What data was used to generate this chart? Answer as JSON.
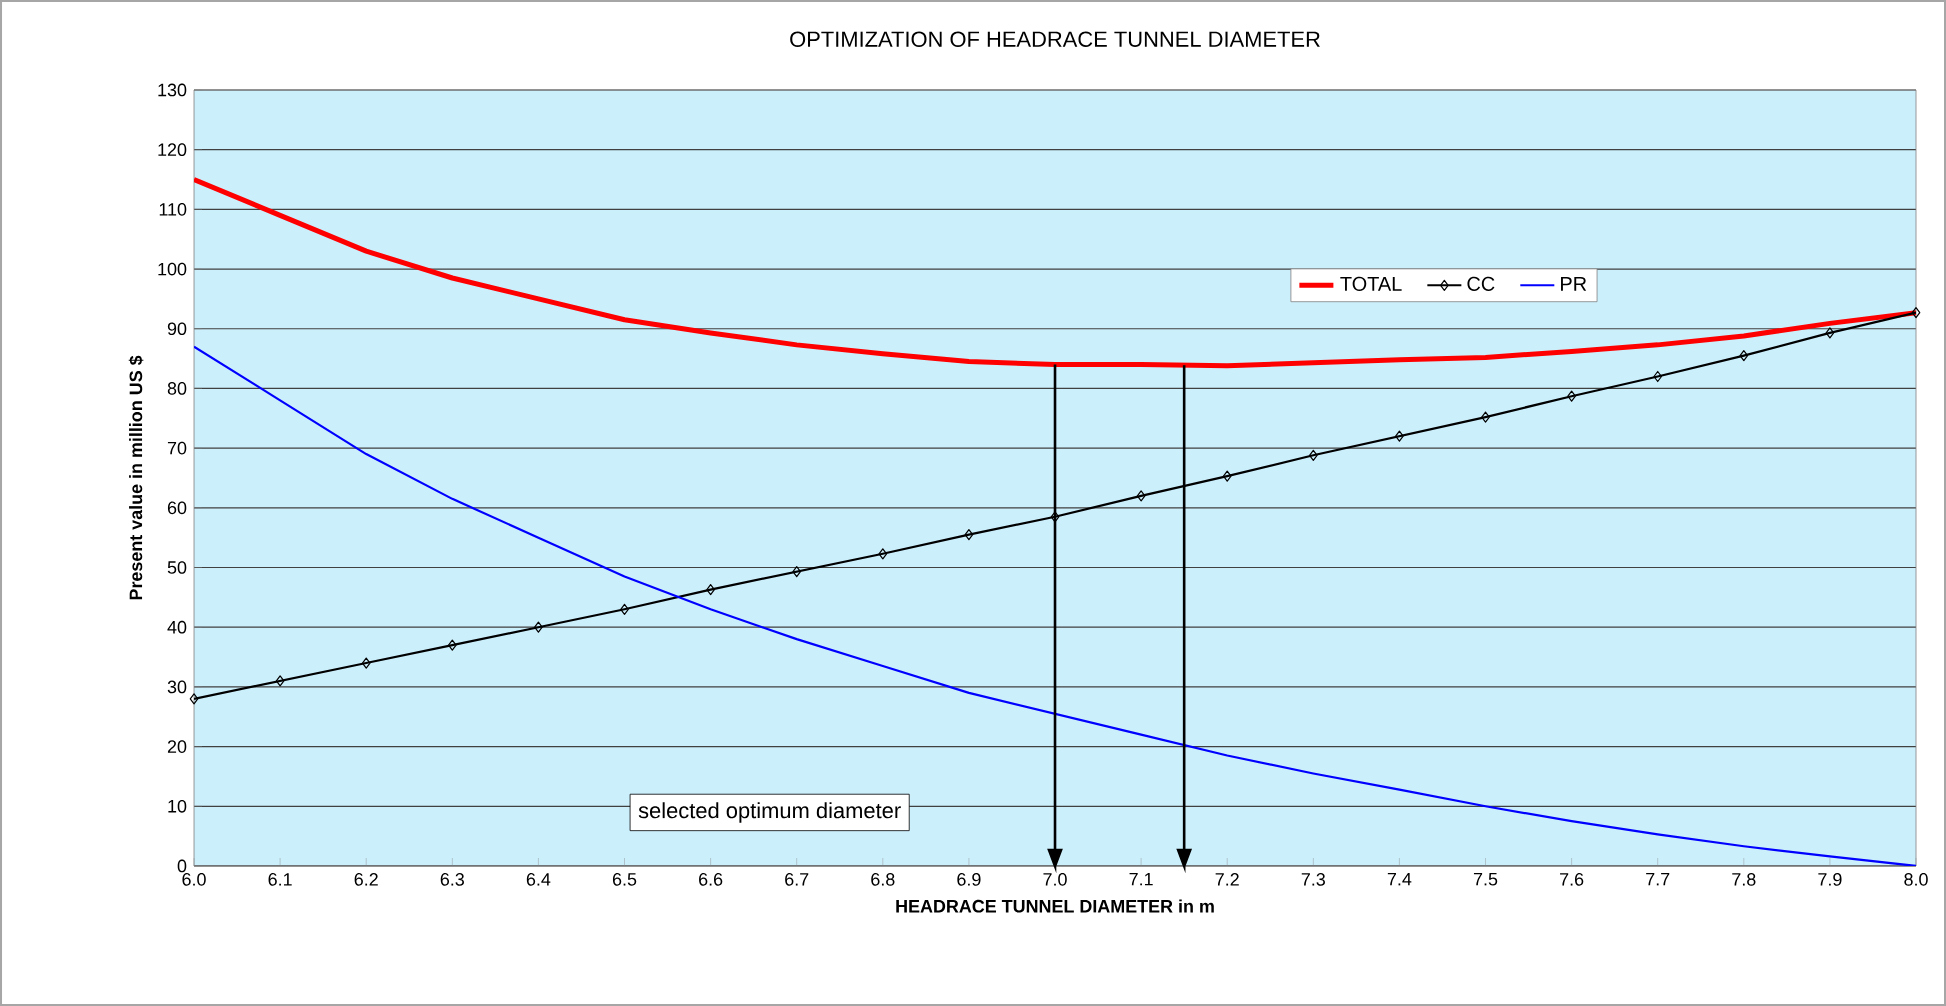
{
  "chart_data": {
    "type": "line",
    "title": "OPTIMIZATION OF HEADRACE TUNNEL DIAMETER",
    "xlabel": "HEADRACE TUNNEL DIAMETER  in  m",
    "ylabel": "Present value in million US $",
    "x": [
      6.0,
      6.1,
      6.2,
      6.3,
      6.4,
      6.5,
      6.6,
      6.7,
      6.8,
      6.9,
      7.0,
      7.1,
      7.2,
      7.3,
      7.4,
      7.5,
      7.6,
      7.7,
      7.8,
      7.9,
      8.0
    ],
    "series": [
      {
        "name": "TOTAL",
        "color": "#ff0000",
        "marker": "none",
        "values": [
          115,
          109,
          103,
          98.5,
          95,
          91.5,
          89.3,
          87.3,
          85.8,
          84.5,
          84,
          84,
          83.8,
          84.3,
          84.8,
          85.2,
          86.2,
          87.3,
          88.8,
          90.9,
          92.7
        ]
      },
      {
        "name": "CC",
        "color": "#000000",
        "marker": "diamond",
        "values": [
          28,
          31,
          34,
          37,
          40,
          43,
          46.3,
          49.3,
          52.3,
          55.5,
          58.5,
          62,
          65.3,
          68.8,
          72,
          75.2,
          78.7,
          82,
          85.5,
          89.3,
          92.7
        ]
      },
      {
        "name": "PR",
        "color": "#0000ff",
        "marker": "none",
        "values": [
          87,
          78,
          69,
          61.5,
          55,
          48.5,
          43,
          38,
          33.5,
          29,
          25.5,
          22,
          18.5,
          15.5,
          12.8,
          10,
          7.5,
          5.3,
          3.3,
          1.6,
          0
        ]
      }
    ],
    "xlim": [
      6.0,
      8.0
    ],
    "ylim": [
      0,
      130
    ],
    "xticks": [
      {
        "value": 6.0,
        "label": "6.0"
      },
      {
        "value": 6.1,
        "label": "6.1"
      },
      {
        "value": 6.2,
        "label": "6.2"
      },
      {
        "value": 6.3,
        "label": "6.3"
      },
      {
        "value": 6.4,
        "label": "6.4"
      },
      {
        "value": 6.5,
        "label": "6.5"
      },
      {
        "value": 6.6,
        "label": "6.6"
      },
      {
        "value": 6.7,
        "label": "6.7"
      },
      {
        "value": 6.8,
        "label": "6.8"
      },
      {
        "value": 6.9,
        "label": "6.9"
      },
      {
        "value": 7.0,
        "label": "7.0"
      },
      {
        "value": 7.1,
        "label": "7.1"
      },
      {
        "value": 7.2,
        "label": "7.2"
      },
      {
        "value": 7.3,
        "label": "7.3"
      },
      {
        "value": 7.4,
        "label": "7.4"
      },
      {
        "value": 7.5,
        "label": "7.5"
      },
      {
        "value": 7.6,
        "label": "7.6"
      },
      {
        "value": 7.7,
        "label": "7.7"
      },
      {
        "value": 7.8,
        "label": "7.8"
      },
      {
        "value": 7.9,
        "label": "7.9"
      },
      {
        "value": 8.0,
        "label": "8.0"
      }
    ],
    "yticks": [
      0,
      10,
      20,
      30,
      40,
      50,
      60,
      70,
      80,
      90,
      100,
      110,
      120,
      130
    ],
    "grid": "y",
    "legend": "top right",
    "ref_lines": [
      {
        "axis": "x",
        "value": 7.0,
        "color": "#000000"
      },
      {
        "axis": "x",
        "value": 7.15,
        "color": "#000000"
      }
    ],
    "annotations": [
      "selected optimum diameter"
    ]
  }
}
